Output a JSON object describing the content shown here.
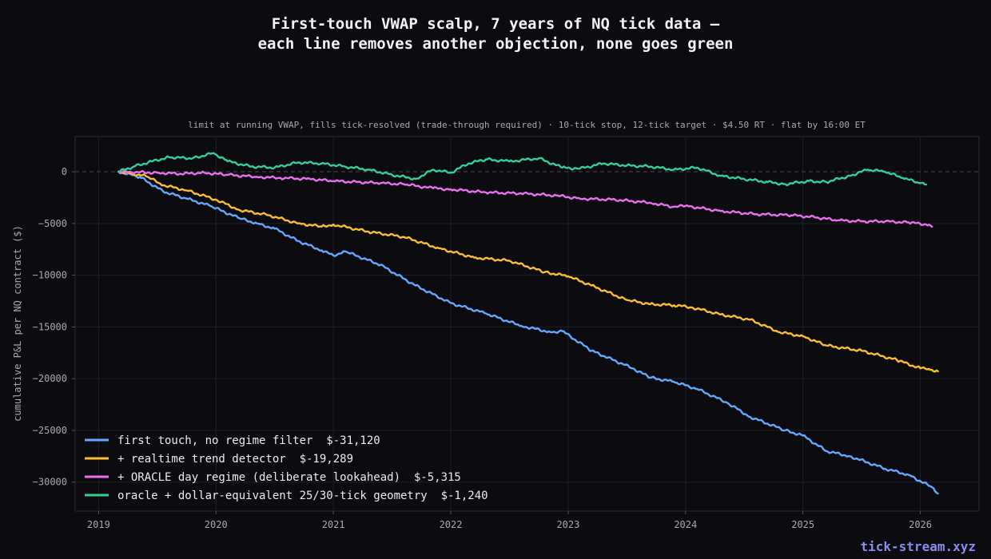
{
  "chart_data": {
    "type": "line",
    "title": "First-touch VWAP scalp, 7 years of NQ tick data —\neach line removes another objection, none goes green",
    "subtitle": "limit at running VWAP, fills tick-resolved (trade-through required) · 10-tick stop, 12-tick target · $4.50 RT · flat by 16:00 ET",
    "xlabel": "",
    "ylabel": "cumulative P&L per NQ contract ($)",
    "xlim": [
      2018.8,
      2026.5
    ],
    "ylim": [
      -32800,
      3400
    ],
    "x_ticks": [
      "2019",
      "2020",
      "2021",
      "2022",
      "2023",
      "2024",
      "2025",
      "2026"
    ],
    "y_ticks": [
      0,
      -5000,
      -10000,
      -15000,
      -20000,
      -25000,
      -30000
    ],
    "y_tick_labels": [
      "0",
      "−5000",
      "−10000",
      "−15000",
      "−20000",
      "−25000",
      "−30000"
    ],
    "grid": true,
    "zero_line": true,
    "legend_position": "lower-left",
    "series": [
      {
        "name": "first touch, no regime filter  $-31,120",
        "color": "#64a8ff",
        "x": [
          2019.17,
          2019.35,
          2019.55,
          2019.75,
          2019.95,
          2020.2,
          2020.35,
          2020.5,
          2020.7,
          2020.9,
          2021.0,
          2021.1,
          2021.4,
          2021.7,
          2022.0,
          2022.3,
          2022.6,
          2022.85,
          2022.95,
          2023.2,
          2023.55,
          2023.7,
          2023.9,
          2024.1,
          2024.35,
          2024.55,
          2024.85,
          2025.0,
          2025.2,
          2025.4,
          2025.7,
          2025.9,
          2026.1,
          2026.15
        ],
        "y": [
          0,
          -500,
          -1900,
          -2600,
          -3300,
          -4500,
          -5000,
          -5500,
          -6700,
          -7600,
          -8100,
          -7700,
          -9000,
          -11000,
          -12700,
          -13700,
          -14900,
          -15500,
          -15400,
          -17300,
          -19000,
          -19900,
          -20300,
          -21000,
          -22300,
          -23700,
          -25000,
          -25500,
          -27000,
          -27500,
          -28700,
          -29300,
          -30500,
          -31100
        ]
      },
      {
        "name": "+ realtime trend detector  $-19,289",
        "color": "#fbbd35",
        "x": [
          2019.17,
          2019.4,
          2019.55,
          2019.75,
          2020.0,
          2020.2,
          2020.45,
          2020.7,
          2020.9,
          2021.0,
          2021.3,
          2021.6,
          2021.9,
          2022.2,
          2022.5,
          2022.8,
          2023.0,
          2023.2,
          2023.5,
          2023.7,
          2023.9,
          2024.05,
          2024.3,
          2024.55,
          2024.8,
          2025.0,
          2025.2,
          2025.5,
          2025.8,
          2026.0,
          2026.1,
          2026.15
        ],
        "y": [
          0,
          -400,
          -1300,
          -1800,
          -2700,
          -3700,
          -4200,
          -5000,
          -5300,
          -5100,
          -5800,
          -6300,
          -7400,
          -8300,
          -8600,
          -9700,
          -10100,
          -11000,
          -12400,
          -12800,
          -12900,
          -13100,
          -13800,
          -14300,
          -15500,
          -15900,
          -16800,
          -17300,
          -18200,
          -19000,
          -19150,
          -19289
        ]
      },
      {
        "name": "+ ORACLE day regime (deliberate lookahead)  $-5,315",
        "color": "#e970f0",
        "x": [
          2019.17,
          2019.5,
          2019.7,
          2019.9,
          2020.1,
          2020.35,
          2020.55,
          2020.8,
          2021.0,
          2021.2,
          2021.4,
          2021.6,
          2021.85,
          2022.0,
          2022.3,
          2022.6,
          2022.9,
          2023.1,
          2023.4,
          2023.7,
          2023.9,
          2024.0,
          2024.3,
          2024.6,
          2024.9,
          2025.1,
          2025.3,
          2025.5,
          2025.7,
          2025.9,
          2026.05,
          2026.1
        ],
        "y": [
          0,
          -100,
          -200,
          -100,
          -300,
          -500,
          -600,
          -700,
          -900,
          -1000,
          -1100,
          -1200,
          -1600,
          -1700,
          -2000,
          -2100,
          -2300,
          -2600,
          -2700,
          -3000,
          -3400,
          -3300,
          -3800,
          -4100,
          -4200,
          -4400,
          -4700,
          -4800,
          -4800,
          -4900,
          -5100,
          -5315
        ]
      },
      {
        "name": "oracle + dollar-equivalent 25/30-tick geometry  $-1,240",
        "color": "#35cf94",
        "x": [
          2019.17,
          2019.3,
          2019.45,
          2019.6,
          2019.8,
          2019.98,
          2020.1,
          2020.3,
          2020.5,
          2020.7,
          2020.9,
          2021.1,
          2021.3,
          2021.5,
          2021.7,
          2021.85,
          2022.0,
          2022.15,
          2022.3,
          2022.5,
          2022.75,
          2022.95,
          2023.1,
          2023.3,
          2023.5,
          2023.7,
          2023.9,
          2024.1,
          2024.3,
          2024.5,
          2024.7,
          2024.85,
          2025.05,
          2025.2,
          2025.4,
          2025.55,
          2025.7,
          2025.85,
          2026.0,
          2026.05
        ],
        "y": [
          0,
          500,
          1000,
          1400,
          1300,
          1800,
          1000,
          500,
          400,
          900,
          800,
          500,
          200,
          -300,
          -700,
          200,
          -100,
          800,
          1200,
          1000,
          1300,
          400,
          300,
          800,
          600,
          500,
          200,
          400,
          -400,
          -700,
          -1000,
          -1200,
          -900,
          -1000,
          -400,
          200,
          0,
          -600,
          -1100,
          -1240
        ]
      }
    ]
  },
  "watermark": "tick-stream.xyz"
}
